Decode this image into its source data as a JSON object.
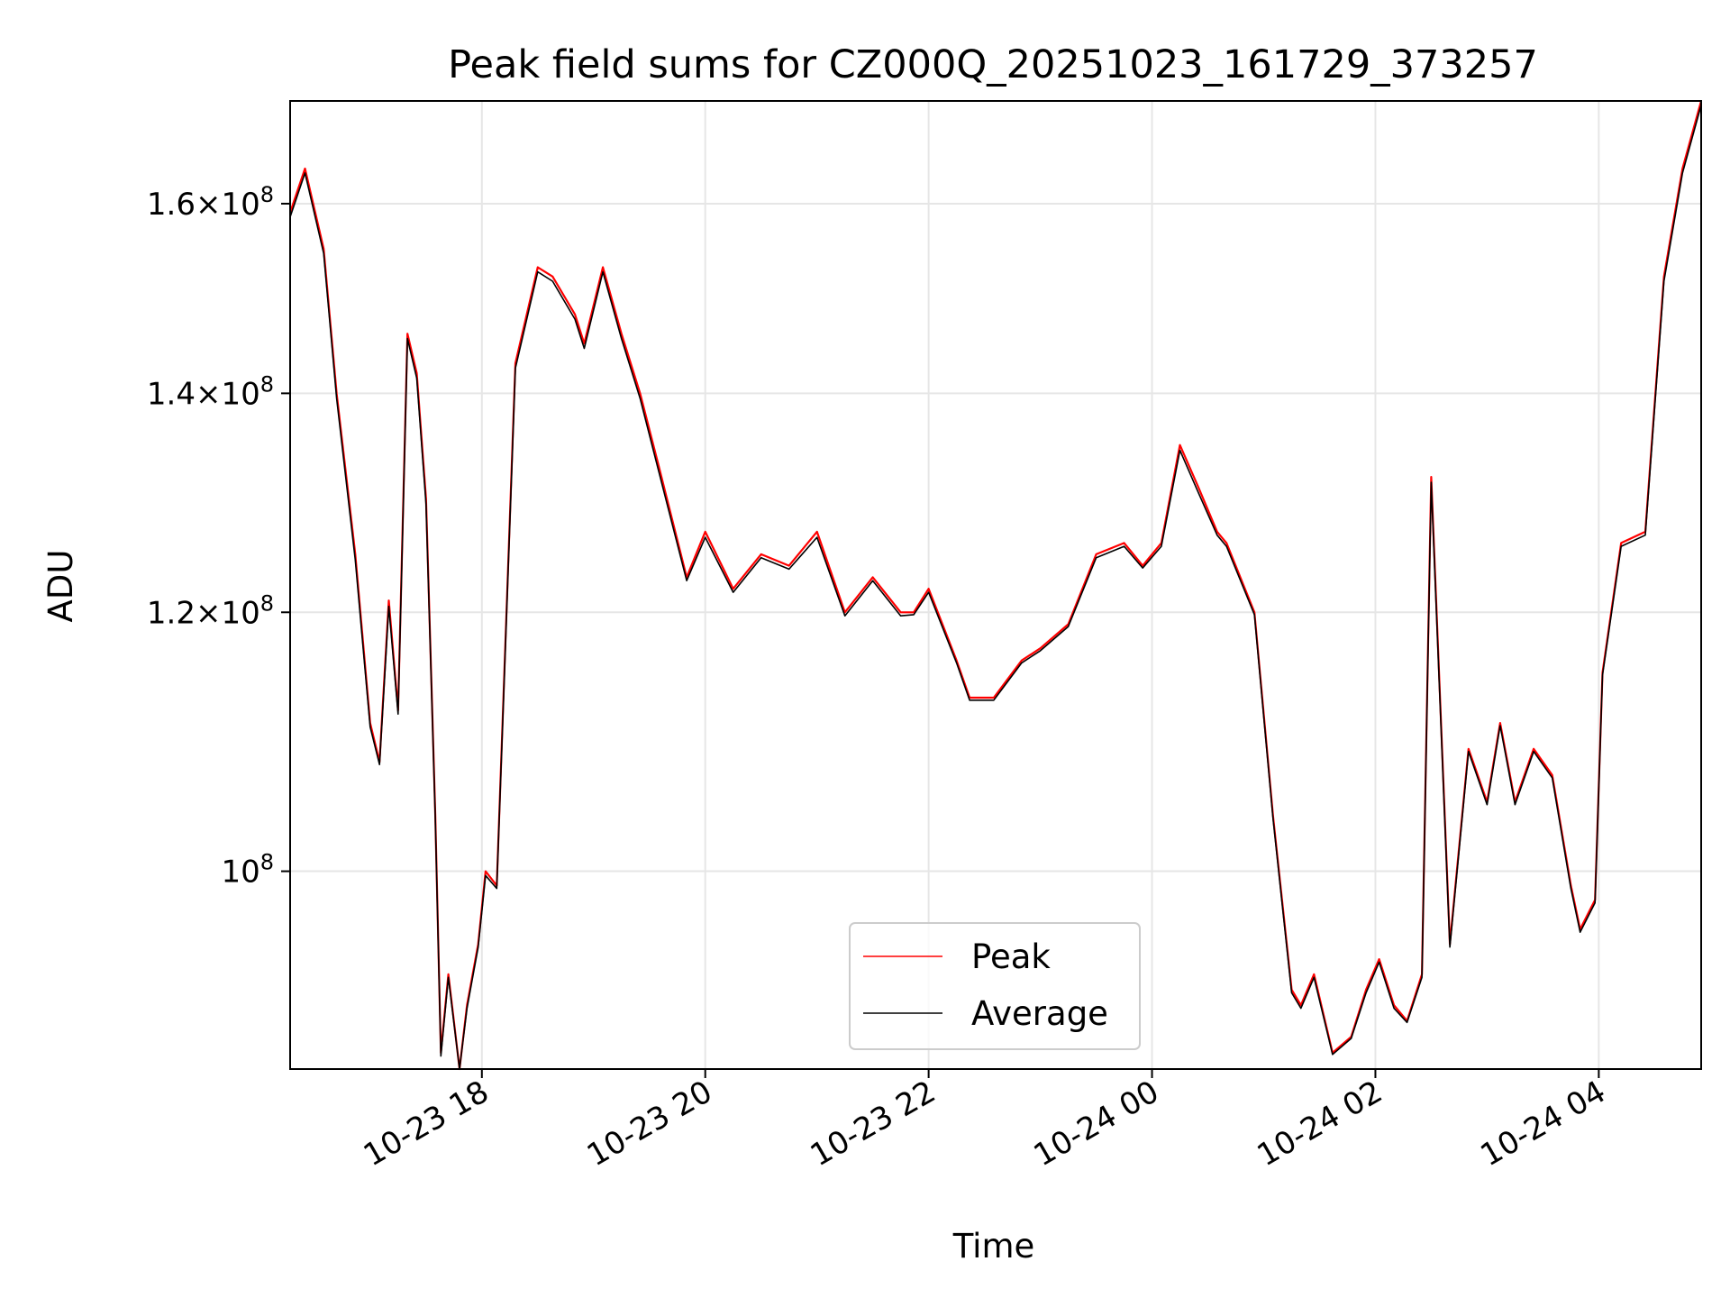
{
  "chart_data": {
    "type": "line",
    "title": "Peak field sums for CZ000Q_20251023_161729_373257",
    "xlabel": "Time",
    "ylabel": "ADU",
    "yscale": "log",
    "grid": true,
    "legend_position": "lower center",
    "xlim": [
      "2025-10-23 16:17",
      "2025-10-24 04:55"
    ],
    "ylim": [
      87000000,
      172000000
    ],
    "x_ticks": [
      {
        "label": "10-23 18",
        "value": "2025-10-23 18:00"
      },
      {
        "label": "10-23 20",
        "value": "2025-10-23 20:00"
      },
      {
        "label": "10-23 22",
        "value": "2025-10-23 22:00"
      },
      {
        "label": "10-24 00",
        "value": "2025-10-24 00:00"
      },
      {
        "label": "10-24 02",
        "value": "2025-10-24 02:00"
      },
      {
        "label": "10-24 04",
        "value": "2025-10-24 04:00"
      }
    ],
    "y_ticks": [
      {
        "base": "1.6",
        "exp": "8",
        "value": 160000000
      },
      {
        "base": "1.4",
        "exp": "8",
        "value": 140000000
      },
      {
        "base": "1.2",
        "exp": "8",
        "value": 120000000
      },
      {
        "base": "",
        "exp": "8",
        "value": 100000000
      }
    ],
    "series": [
      {
        "name": "Peak",
        "color": "#ff0000",
        "x": [
          "2025-10-23 16:17",
          "2025-10-23 16:25",
          "2025-10-23 16:35",
          "2025-10-23 16:42",
          "2025-10-23 16:52",
          "2025-10-23 17:00",
          "2025-10-23 17:05",
          "2025-10-23 17:10",
          "2025-10-23 17:15",
          "2025-10-23 17:20",
          "2025-10-23 17:25",
          "2025-10-23 17:30",
          "2025-10-23 17:32",
          "2025-10-23 17:35",
          "2025-10-23 17:38",
          "2025-10-23 17:42",
          "2025-10-23 17:48",
          "2025-10-23 17:52",
          "2025-10-23 17:58",
          "2025-10-23 18:02",
          "2025-10-23 18:08",
          "2025-10-23 18:18",
          "2025-10-23 18:30",
          "2025-10-23 18:38",
          "2025-10-23 18:50",
          "2025-10-23 18:55",
          "2025-10-23 19:05",
          "2025-10-23 19:15",
          "2025-10-23 19:25",
          "2025-10-23 19:35",
          "2025-10-23 19:50",
          "2025-10-23 20:00",
          "2025-10-23 20:15",
          "2025-10-23 20:30",
          "2025-10-23 20:45",
          "2025-10-23 21:00",
          "2025-10-23 21:15",
          "2025-10-23 21:30",
          "2025-10-23 21:45",
          "2025-10-23 21:52",
          "2025-10-23 22:00",
          "2025-10-23 22:15",
          "2025-10-23 22:22",
          "2025-10-23 22:35",
          "2025-10-23 22:50",
          "2025-10-23 23:00",
          "2025-10-23 23:15",
          "2025-10-23 23:30",
          "2025-10-23 23:45",
          "2025-10-23 23:55",
          "2025-10-24 00:05",
          "2025-10-24 00:15",
          "2025-10-24 00:25",
          "2025-10-24 00:35",
          "2025-10-24 00:40",
          "2025-10-24 00:55",
          "2025-10-24 01:05",
          "2025-10-24 01:15",
          "2025-10-24 01:20",
          "2025-10-24 01:27",
          "2025-10-24 01:37",
          "2025-10-24 01:47",
          "2025-10-24 01:55",
          "2025-10-24 02:02",
          "2025-10-24 02:10",
          "2025-10-24 02:17",
          "2025-10-24 02:25",
          "2025-10-24 02:30",
          "2025-10-24 02:40",
          "2025-10-24 02:50",
          "2025-10-24 03:00",
          "2025-10-24 03:07",
          "2025-10-24 03:15",
          "2025-10-24 03:25",
          "2025-10-24 03:35",
          "2025-10-24 03:45",
          "2025-10-24 03:50",
          "2025-10-24 03:58",
          "2025-10-24 04:02",
          "2025-10-24 04:12",
          "2025-10-24 04:25",
          "2025-10-24 04:35",
          "2025-10-24 04:45",
          "2025-10-24 04:55"
        ],
        "y": [
          159000000,
          164000000,
          155000000,
          140000000,
          125000000,
          111000000,
          108000000,
          121000000,
          112000000,
          146000000,
          142000000,
          130000000,
          119000000,
          104000000,
          88000000,
          93000000,
          87000000,
          91000000,
          95000000,
          100000000,
          99000000,
          143000000,
          153000000,
          152000000,
          148000000,
          145000000,
          153000000,
          146000000,
          140000000,
          133000000,
          123000000,
          127000000,
          122000000,
          125000000,
          124000000,
          127000000,
          120000000,
          123000000,
          120000000,
          120000000,
          122000000,
          116000000,
          113000000,
          113000000,
          116000000,
          117000000,
          119000000,
          125000000,
          126000000,
          124000000,
          126000000,
          135000000,
          131000000,
          127000000,
          126000000,
          120000000,
          104000000,
          92000000,
          91000000,
          93000000,
          88000000,
          89000000,
          92000000,
          94000000,
          91000000,
          90000000,
          93000000,
          132000000,
          95000000,
          109000000,
          105000000,
          111000000,
          105000000,
          109000000,
          107000000,
          99000000,
          96000000,
          98000000,
          115000000,
          126000000,
          127000000,
          152000000,
          164000000,
          172000000
        ]
      },
      {
        "name": "Average",
        "color": "#000000",
        "x": [
          "2025-10-23 16:17",
          "2025-10-23 16:25",
          "2025-10-23 16:35",
          "2025-10-23 16:42",
          "2025-10-23 16:52",
          "2025-10-23 17:00",
          "2025-10-23 17:05",
          "2025-10-23 17:10",
          "2025-10-23 17:15",
          "2025-10-23 17:20",
          "2025-10-23 17:25",
          "2025-10-23 17:30",
          "2025-10-23 17:32",
          "2025-10-23 17:35",
          "2025-10-23 17:38",
          "2025-10-23 17:42",
          "2025-10-23 17:48",
          "2025-10-23 17:52",
          "2025-10-23 17:58",
          "2025-10-23 18:02",
          "2025-10-23 18:08",
          "2025-10-23 18:18",
          "2025-10-23 18:30",
          "2025-10-23 18:38",
          "2025-10-23 18:50",
          "2025-10-23 18:55",
          "2025-10-23 19:05",
          "2025-10-23 19:15",
          "2025-10-23 19:25",
          "2025-10-23 19:35",
          "2025-10-23 19:50",
          "2025-10-23 20:00",
          "2025-10-23 20:15",
          "2025-10-23 20:30",
          "2025-10-23 20:45",
          "2025-10-23 21:00",
          "2025-10-23 21:15",
          "2025-10-23 21:30",
          "2025-10-23 21:45",
          "2025-10-23 21:52",
          "2025-10-23 22:00",
          "2025-10-23 22:15",
          "2025-10-23 22:22",
          "2025-10-23 22:35",
          "2025-10-23 22:50",
          "2025-10-23 23:00",
          "2025-10-23 23:15",
          "2025-10-23 23:30",
          "2025-10-23 23:45",
          "2025-10-23 23:55",
          "2025-10-24 00:05",
          "2025-10-24 00:15",
          "2025-10-24 00:25",
          "2025-10-24 00:35",
          "2025-10-24 00:40",
          "2025-10-24 00:55",
          "2025-10-24 01:05",
          "2025-10-24 01:15",
          "2025-10-24 01:20",
          "2025-10-24 01:27",
          "2025-10-24 01:37",
          "2025-10-24 01:47",
          "2025-10-24 01:55",
          "2025-10-24 02:02",
          "2025-10-24 02:10",
          "2025-10-24 02:17",
          "2025-10-24 02:25",
          "2025-10-24 02:30",
          "2025-10-24 02:40",
          "2025-10-24 02:50",
          "2025-10-24 03:00",
          "2025-10-24 03:07",
          "2025-10-24 03:15",
          "2025-10-24 03:25",
          "2025-10-24 03:35",
          "2025-10-24 03:45",
          "2025-10-24 03:50",
          "2025-10-24 03:58",
          "2025-10-24 04:02",
          "2025-10-24 04:12",
          "2025-10-24 04:25",
          "2025-10-24 04:35",
          "2025-10-24 04:45",
          "2025-10-24 04:55"
        ],
        "y": [
          158500000,
          163500000,
          154500000,
          139500000,
          124500000,
          110700000,
          107800000,
          120500000,
          111700000,
          145500000,
          141500000,
          129500000,
          118700000,
          103800000,
          87800000,
          92800000,
          87000000,
          90800000,
          94800000,
          99700000,
          98800000,
          142500000,
          152500000,
          151500000,
          147500000,
          144500000,
          152500000,
          145500000,
          139500000,
          132500000,
          122700000,
          126500000,
          121700000,
          124700000,
          123700000,
          126500000,
          119700000,
          122700000,
          119700000,
          119800000,
          121700000,
          115800000,
          112800000,
          112800000,
          115800000,
          116800000,
          118800000,
          124700000,
          125700000,
          123800000,
          125700000,
          134500000,
          130500000,
          126700000,
          125700000,
          119800000,
          103800000,
          91800000,
          90800000,
          92800000,
          87900000,
          88900000,
          91800000,
          93800000,
          90800000,
          89900000,
          92800000,
          131500000,
          94800000,
          108800000,
          104800000,
          110800000,
          104800000,
          108800000,
          106800000,
          98800000,
          95800000,
          97800000,
          114800000,
          125700000,
          126700000,
          151500000,
          163500000,
          171500000
        ]
      }
    ],
    "legend": [
      {
        "name": "Peak",
        "color": "#ff0000"
      },
      {
        "name": "Average",
        "color": "#000000"
      }
    ]
  }
}
